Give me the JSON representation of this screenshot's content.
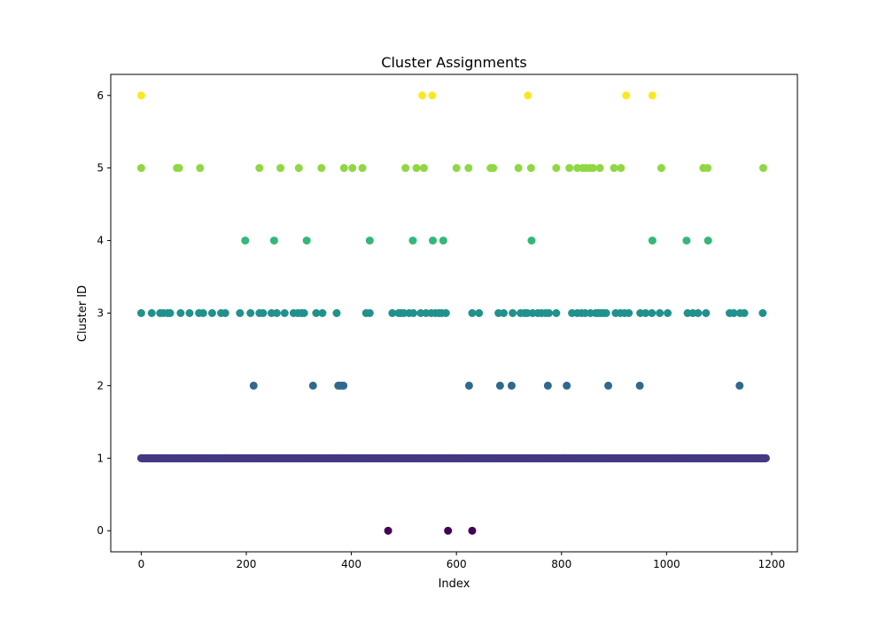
{
  "chart_data": {
    "type": "scatter",
    "title": "Cluster Assignments",
    "xlabel": "Index",
    "ylabel": "Cluster ID",
    "xlim": [
      -58,
      1249
    ],
    "ylim": [
      -0.29,
      6.29
    ],
    "xticks": [
      0,
      200,
      400,
      600,
      800,
      1000,
      1200
    ],
    "yticks": [
      0,
      1,
      2,
      3,
      4,
      5,
      6
    ],
    "grid": false,
    "colormap": "viridis",
    "cluster_colors": {
      "0": "#440154",
      "1": "#443983",
      "2": "#31688e",
      "3": "#21918c",
      "4": "#35b779",
      "5": "#90d743",
      "6": "#fde725"
    },
    "dense_cluster_1": {
      "y": 1,
      "x_start": 0,
      "x_end": 1189,
      "step": 1
    },
    "points": [
      {
        "y": 0,
        "x": [
          470,
          584,
          630
        ]
      },
      {
        "y": 2,
        "x": [
          214,
          327,
          375,
          379,
          383,
          385,
          624,
          683,
          705,
          774,
          810,
          889,
          949,
          1139
        ]
      },
      {
        "y": 3,
        "x": [
          0,
          20,
          36,
          42,
          50,
          55,
          75,
          92,
          110,
          118,
          135,
          152,
          160,
          188,
          208,
          225,
          232,
          248,
          258,
          273,
          290,
          298,
          305,
          310,
          333,
          345,
          372,
          428,
          435,
          478,
          490,
          495,
          500,
          510,
          518,
          532,
          542,
          552,
          560,
          567,
          572,
          580,
          630,
          643,
          680,
          690,
          707,
          722,
          730,
          735,
          745,
          755,
          762,
          770,
          776,
          790,
          820,
          830,
          838,
          845,
          855,
          865,
          870,
          875,
          880,
          885,
          903,
          912,
          920,
          928,
          950,
          960,
          972,
          987,
          1002,
          1040,
          1050,
          1060,
          1075,
          1120,
          1128,
          1140,
          1148,
          1183
        ]
      },
      {
        "y": 4,
        "x": [
          198,
          253,
          315,
          435,
          517,
          555,
          575,
          743,
          973,
          1038,
          1079
        ]
      },
      {
        "y": 5,
        "x": [
          0,
          68,
          72,
          112,
          225,
          265,
          300,
          343,
          386,
          402,
          421,
          503,
          524,
          538,
          600,
          623,
          665,
          670,
          718,
          742,
          790,
          815,
          830,
          840,
          847,
          855,
          860,
          873,
          900,
          913,
          990,
          1070,
          1078,
          1184
        ]
      },
      {
        "y": 6,
        "x": [
          0,
          535,
          554,
          736,
          923,
          973
        ]
      }
    ]
  }
}
